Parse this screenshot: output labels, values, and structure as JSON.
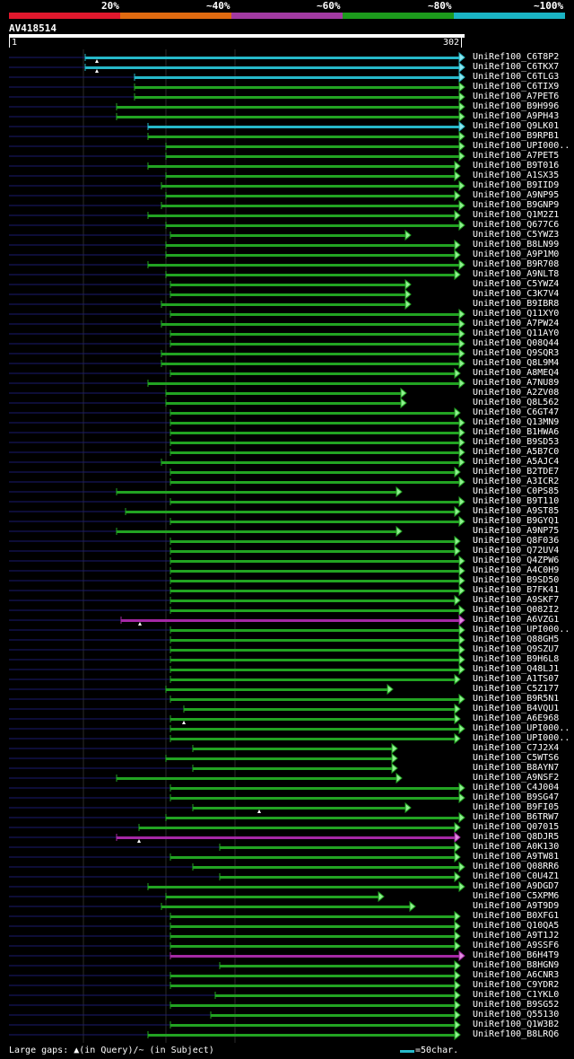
{
  "legend": {
    "labels": [
      "20%",
      "~40%",
      "~60%",
      "~80%",
      "~100%"
    ],
    "colors": [
      "#e0182d",
      "#e06a10",
      "#a23aa2",
      "#1c9a1c",
      "#1ab4c4"
    ]
  },
  "query": {
    "id": "AV418514",
    "start": "1",
    "end": "302"
  },
  "footer": {
    "gaps_text": "Large gaps: ▲(in Query)/~ (in Subject)",
    "scale_text": "=50char."
  },
  "hits": [
    {
      "id": "UniRef100_C6T8P2",
      "sx": 95,
      "ex": 512,
      "color": "cyan",
      "tri": 108
    },
    {
      "id": "UniRef100_C6TKX7",
      "sx": 95,
      "ex": 512,
      "color": "cyan",
      "tri": 108
    },
    {
      "id": "UniRef100_C6TLG3",
      "sx": 150,
      "ex": 512,
      "color": "cyan"
    },
    {
      "id": "UniRef100_C6TIX9",
      "sx": 150,
      "ex": 512,
      "color": "green"
    },
    {
      "id": "UniRef100_A7PET6",
      "sx": 150,
      "ex": 512,
      "color": "green"
    },
    {
      "id": "UniRef100_B9H996",
      "sx": 130,
      "ex": 512,
      "color": "green"
    },
    {
      "id": "UniRef100_A9PH43",
      "sx": 130,
      "ex": 512,
      "color": "green"
    },
    {
      "id": "UniRef100_Q9LK01",
      "sx": 165,
      "ex": 512,
      "color": "cyan"
    },
    {
      "id": "UniRef100_B9RPB1",
      "sx": 165,
      "ex": 512,
      "color": "green"
    },
    {
      "id": "UniRef100_UPI000..",
      "sx": 185,
      "ex": 512,
      "color": "green"
    },
    {
      "id": "UniRef100_A7PET5",
      "sx": 185,
      "ex": 512,
      "color": "green"
    },
    {
      "id": "UniRef100_B9T016",
      "sx": 165,
      "ex": 507,
      "color": "green"
    },
    {
      "id": "UniRef100_A1SX35",
      "sx": 185,
      "ex": 507,
      "color": "green"
    },
    {
      "id": "UniRef100_B9IID9",
      "sx": 180,
      "ex": 512,
      "color": "green"
    },
    {
      "id": "UniRef100_A9NP95",
      "sx": 185,
      "ex": 507,
      "color": "green"
    },
    {
      "id": "UniRef100_B9GNP9",
      "sx": 180,
      "ex": 512,
      "color": "green"
    },
    {
      "id": "UniRef100_Q1M2Z1",
      "sx": 165,
      "ex": 507,
      "color": "green"
    },
    {
      "id": "UniRef100_Q677C6",
      "sx": 185,
      "ex": 512,
      "color": "green"
    },
    {
      "id": "UniRef100_C5YWZ3",
      "sx": 190,
      "ex": 452,
      "color": "green"
    },
    {
      "id": "UniRef100_B8LN99",
      "sx": 185,
      "ex": 507,
      "color": "green"
    },
    {
      "id": "UniRef100_A9P1M0",
      "sx": 185,
      "ex": 507,
      "color": "green"
    },
    {
      "id": "UniRef100_B9R708",
      "sx": 165,
      "ex": 512,
      "color": "green"
    },
    {
      "id": "UniRef100_A9NLT8",
      "sx": 185,
      "ex": 507,
      "color": "green"
    },
    {
      "id": "UniRef100_C5YWZ4",
      "sx": 190,
      "ex": 452,
      "color": "green"
    },
    {
      "id": "UniRef100_C3K7V4",
      "sx": 190,
      "ex": 452,
      "color": "green"
    },
    {
      "id": "UniRef100_B9IBR8",
      "sx": 180,
      "ex": 452,
      "color": "green"
    },
    {
      "id": "UniRef100_Q11XY0",
      "sx": 190,
      "ex": 512,
      "color": "green"
    },
    {
      "id": "UniRef100_A7PW24",
      "sx": 180,
      "ex": 512,
      "color": "green"
    },
    {
      "id": "UniRef100_Q11AY0",
      "sx": 190,
      "ex": 512,
      "color": "green"
    },
    {
      "id": "UniRef100_Q08Q44",
      "sx": 190,
      "ex": 512,
      "color": "green"
    },
    {
      "id": "UniRef100_Q9SQR3",
      "sx": 180,
      "ex": 512,
      "color": "green"
    },
    {
      "id": "UniRef100_Q8L9M4",
      "sx": 180,
      "ex": 512,
      "color": "green"
    },
    {
      "id": "UniRef100_A8MEQ4",
      "sx": 190,
      "ex": 507,
      "color": "green"
    },
    {
      "id": "UniRef100_A7NU89",
      "sx": 165,
      "ex": 512,
      "color": "green"
    },
    {
      "id": "UniRef100_A2ZV08",
      "sx": 185,
      "ex": 447,
      "color": "green"
    },
    {
      "id": "UniRef100_Q8L562",
      "sx": 185,
      "ex": 447,
      "color": "green"
    },
    {
      "id": "UniRef100_C6GT47",
      "sx": 190,
      "ex": 507,
      "color": "green"
    },
    {
      "id": "UniRef100_Q13MN9",
      "sx": 190,
      "ex": 512,
      "color": "green"
    },
    {
      "id": "UniRef100_B1HWA6",
      "sx": 190,
      "ex": 512,
      "color": "green"
    },
    {
      "id": "UniRef100_B9SD53",
      "sx": 190,
      "ex": 512,
      "color": "green"
    },
    {
      "id": "UniRef100_A5B7C0",
      "sx": 190,
      "ex": 512,
      "color": "green"
    },
    {
      "id": "UniRef100_A5AJC4",
      "sx": 180,
      "ex": 512,
      "color": "green"
    },
    {
      "id": "UniRef100_B2TDE7",
      "sx": 190,
      "ex": 507,
      "color": "green"
    },
    {
      "id": "UniRef100_A3ICR2",
      "sx": 190,
      "ex": 512,
      "color": "green"
    },
    {
      "id": "UniRef100_C0PS85",
      "sx": 130,
      "ex": 442,
      "color": "green"
    },
    {
      "id": "UniRef100_B9T110",
      "sx": 190,
      "ex": 512,
      "color": "green"
    },
    {
      "id": "UniRef100_A9ST85",
      "sx": 140,
      "ex": 507,
      "color": "green"
    },
    {
      "id": "UniRef100_B9GYQ1",
      "sx": 190,
      "ex": 512,
      "color": "green"
    },
    {
      "id": "UniRef100_A9NP75",
      "sx": 130,
      "ex": 442,
      "color": "green"
    },
    {
      "id": "UniRef100_Q8F036",
      "sx": 190,
      "ex": 507,
      "color": "green"
    },
    {
      "id": "UniRef100_Q72UV4",
      "sx": 190,
      "ex": 507,
      "color": "green"
    },
    {
      "id": "UniRef100_Q4ZPW6",
      "sx": 190,
      "ex": 512,
      "color": "green"
    },
    {
      "id": "UniRef100_A4C0H9",
      "sx": 190,
      "ex": 512,
      "color": "green"
    },
    {
      "id": "UniRef100_B9SD50",
      "sx": 190,
      "ex": 512,
      "color": "green"
    },
    {
      "id": "UniRef100_B7FK41",
      "sx": 190,
      "ex": 512,
      "color": "green"
    },
    {
      "id": "UniRef100_A9SKF7",
      "sx": 190,
      "ex": 507,
      "color": "green"
    },
    {
      "id": "UniRef100_Q082I2",
      "sx": 190,
      "ex": 512,
      "color": "green"
    },
    {
      "id": "UniRef100_A6VZG1",
      "sx": 135,
      "ex": 512,
      "color": "magenta",
      "tri": 156
    },
    {
      "id": "UniRef100_UPI000..",
      "sx": 190,
      "ex": 512,
      "color": "green"
    },
    {
      "id": "UniRef100_Q88GH5",
      "sx": 190,
      "ex": 512,
      "color": "green"
    },
    {
      "id": "UniRef100_Q9SZU7",
      "sx": 190,
      "ex": 512,
      "color": "green"
    },
    {
      "id": "UniRef100_B9H6L8",
      "sx": 190,
      "ex": 512,
      "color": "green"
    },
    {
      "id": "UniRef100_Q48LJ1",
      "sx": 190,
      "ex": 512,
      "color": "green"
    },
    {
      "id": "UniRef100_A1TS07",
      "sx": 190,
      "ex": 507,
      "color": "green"
    },
    {
      "id": "UniRef100_C5Z177",
      "sx": 185,
      "ex": 432,
      "color": "green"
    },
    {
      "id": "UniRef100_B9R5N1",
      "sx": 190,
      "ex": 512,
      "color": "green"
    },
    {
      "id": "UniRef100_B4VQU1",
      "sx": 205,
      "ex": 507,
      "color": "green"
    },
    {
      "id": "UniRef100_A6E968",
      "sx": 190,
      "ex": 507,
      "color": "green",
      "tri": 205
    },
    {
      "id": "UniRef100_UPI000..",
      "sx": 190,
      "ex": 512,
      "color": "green"
    },
    {
      "id": "UniRef100_UPI000..",
      "sx": 190,
      "ex": 507,
      "color": "green"
    },
    {
      "id": "UniRef100_C7J2X4",
      "sx": 215,
      "ex": 437,
      "color": "green"
    },
    {
      "id": "UniRef100_C5WTS6",
      "sx": 185,
      "ex": 437,
      "color": "green"
    },
    {
      "id": "UniRef100_B8AYN7",
      "sx": 215,
      "ex": 437,
      "color": "green"
    },
    {
      "id": "UniRef100_A9NSF2",
      "sx": 130,
      "ex": 442,
      "color": "green"
    },
    {
      "id": "UniRef100_C4J004",
      "sx": 190,
      "ex": 512,
      "color": "green"
    },
    {
      "id": "UniRef100_B9SG47",
      "sx": 190,
      "ex": 512,
      "color": "green"
    },
    {
      "id": "UniRef100_B9FI05",
      "sx": 215,
      "ex": 452,
      "color": "green",
      "tri": 289
    },
    {
      "id": "UniRef100_B6TRW7",
      "sx": 185,
      "ex": 512,
      "color": "green"
    },
    {
      "id": "UniRef100_Q07015",
      "sx": 155,
      "ex": 507,
      "color": "green"
    },
    {
      "id": "UniRef100_Q8DJR5",
      "sx": 130,
      "ex": 507,
      "color": "magenta",
      "tri": 155
    },
    {
      "id": "UniRef100_A0K130",
      "sx": 245,
      "ex": 507,
      "color": "green"
    },
    {
      "id": "UniRef100_A9TW81",
      "sx": 190,
      "ex": 507,
      "color": "green"
    },
    {
      "id": "UniRef100_Q08RR6",
      "sx": 215,
      "ex": 512,
      "color": "green"
    },
    {
      "id": "UniRef100_C0U4Z1",
      "sx": 245,
      "ex": 507,
      "color": "green"
    },
    {
      "id": "UniRef100_A9DGD7",
      "sx": 165,
      "ex": 512,
      "color": "green"
    },
    {
      "id": "UniRef100_C5XPM6",
      "sx": 185,
      "ex": 422,
      "color": "green"
    },
    {
      "id": "UniRef100_A9T9D9",
      "sx": 180,
      "ex": 457,
      "color": "green"
    },
    {
      "id": "UniRef100_B0XFG1",
      "sx": 190,
      "ex": 507,
      "color": "green"
    },
    {
      "id": "UniRef100_Q10QA5",
      "sx": 190,
      "ex": 507,
      "color": "green"
    },
    {
      "id": "UniRef100_A9T1J2",
      "sx": 190,
      "ex": 507,
      "color": "green"
    },
    {
      "id": "UniRef100_A9SSF6",
      "sx": 190,
      "ex": 507,
      "color": "green"
    },
    {
      "id": "UniRef100_B6H4T9",
      "sx": 190,
      "ex": 512,
      "color": "magenta"
    },
    {
      "id": "UniRef100_B8HGN9",
      "sx": 245,
      "ex": 507,
      "color": "green"
    },
    {
      "id": "UniRef100_A6CNR3",
      "sx": 190,
      "ex": 507,
      "color": "green"
    },
    {
      "id": "UniRef100_C9YDR2",
      "sx": 190,
      "ex": 507,
      "color": "green"
    },
    {
      "id": "UniRef100_C1YKL0",
      "sx": 240,
      "ex": 507,
      "color": "green"
    },
    {
      "id": "UniRef100_B9SG52",
      "sx": 190,
      "ex": 507,
      "color": "green"
    },
    {
      "id": "UniRef100_Q55130",
      "sx": 235,
      "ex": 507,
      "color": "green"
    },
    {
      "id": "UniRef100_Q1W3B2",
      "sx": 190,
      "ex": 507,
      "color": "green"
    },
    {
      "id": "UniRef100_B8LRQ6",
      "sx": 165,
      "ex": 507,
      "color": "green"
    }
  ]
}
